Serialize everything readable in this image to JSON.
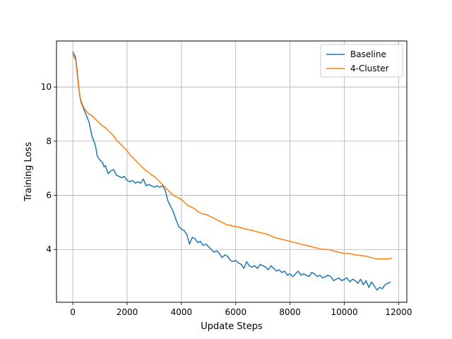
{
  "chart_data": {
    "type": "line",
    "xlabel": "Update Steps",
    "ylabel": "Training Loss",
    "xlim": [
      -600,
      12300
    ],
    "ylim": [
      2.05,
      11.7
    ],
    "xticks": [
      0,
      2000,
      4000,
      6000,
      8000,
      10000,
      12000
    ],
    "yticks": [
      4,
      6,
      8,
      10
    ],
    "grid": true,
    "legend_position": "top-right",
    "series": [
      {
        "name": "Baseline",
        "color": "#1f77b4",
        "points": [
          [
            0,
            11.3
          ],
          [
            100,
            11.1
          ],
          [
            150,
            10.7
          ],
          [
            200,
            10.2
          ],
          [
            250,
            9.7
          ],
          [
            300,
            9.45
          ],
          [
            400,
            9.2
          ],
          [
            500,
            8.95
          ],
          [
            600,
            8.7
          ],
          [
            650,
            8.45
          ],
          [
            700,
            8.2
          ],
          [
            800,
            7.95
          ],
          [
            850,
            7.75
          ],
          [
            900,
            7.45
          ],
          [
            1000,
            7.3
          ],
          [
            1100,
            7.2
          ],
          [
            1150,
            7.05
          ],
          [
            1200,
            7.1
          ],
          [
            1300,
            6.8
          ],
          [
            1400,
            6.9
          ],
          [
            1500,
            6.95
          ],
          [
            1600,
            6.75
          ],
          [
            1700,
            6.7
          ],
          [
            1800,
            6.65
          ],
          [
            1900,
            6.7
          ],
          [
            2000,
            6.55
          ],
          [
            2100,
            6.5
          ],
          [
            2200,
            6.55
          ],
          [
            2300,
            6.45
          ],
          [
            2400,
            6.5
          ],
          [
            2500,
            6.45
          ],
          [
            2600,
            6.6
          ],
          [
            2700,
            6.35
          ],
          [
            2800,
            6.4
          ],
          [
            2900,
            6.35
          ],
          [
            3000,
            6.3
          ],
          [
            3100,
            6.35
          ],
          [
            3200,
            6.3
          ],
          [
            3300,
            6.35
          ],
          [
            3400,
            6.2
          ],
          [
            3500,
            5.8
          ],
          [
            3600,
            5.6
          ],
          [
            3700,
            5.4
          ],
          [
            3800,
            5.1
          ],
          [
            3900,
            4.85
          ],
          [
            4000,
            4.75
          ],
          [
            4100,
            4.7
          ],
          [
            4200,
            4.55
          ],
          [
            4300,
            4.2
          ],
          [
            4400,
            4.45
          ],
          [
            4500,
            4.4
          ],
          [
            4600,
            4.25
          ],
          [
            4700,
            4.3
          ],
          [
            4800,
            4.15
          ],
          [
            4900,
            4.2
          ],
          [
            5000,
            4.1
          ],
          [
            5100,
            4.0
          ],
          [
            5200,
            3.9
          ],
          [
            5300,
            3.95
          ],
          [
            5400,
            3.85
          ],
          [
            5500,
            3.7
          ],
          [
            5600,
            3.8
          ],
          [
            5700,
            3.75
          ],
          [
            5800,
            3.6
          ],
          [
            5900,
            3.55
          ],
          [
            6000,
            3.6
          ],
          [
            6100,
            3.5
          ],
          [
            6200,
            3.45
          ],
          [
            6300,
            3.3
          ],
          [
            6400,
            3.55
          ],
          [
            6500,
            3.4
          ],
          [
            6600,
            3.35
          ],
          [
            6700,
            3.4
          ],
          [
            6800,
            3.3
          ],
          [
            6900,
            3.45
          ],
          [
            7000,
            3.4
          ],
          [
            7100,
            3.35
          ],
          [
            7200,
            3.25
          ],
          [
            7300,
            3.4
          ],
          [
            7400,
            3.3
          ],
          [
            7500,
            3.2
          ],
          [
            7600,
            3.25
          ],
          [
            7700,
            3.15
          ],
          [
            7800,
            3.2
          ],
          [
            7900,
            3.05
          ],
          [
            8000,
            3.1
          ],
          [
            8100,
            3.0
          ],
          [
            8200,
            3.1
          ],
          [
            8300,
            3.2
          ],
          [
            8400,
            3.05
          ],
          [
            8500,
            3.1
          ],
          [
            8600,
            3.05
          ],
          [
            8700,
            3.0
          ],
          [
            8800,
            3.15
          ],
          [
            8900,
            3.1
          ],
          [
            9000,
            3.0
          ],
          [
            9100,
            3.05
          ],
          [
            9200,
            2.95
          ],
          [
            9300,
            3.0
          ],
          [
            9400,
            3.05
          ],
          [
            9500,
            3.0
          ],
          [
            9600,
            2.85
          ],
          [
            9700,
            2.9
          ],
          [
            9800,
            2.95
          ],
          [
            9900,
            2.85
          ],
          [
            10000,
            2.9
          ],
          [
            10100,
            2.95
          ],
          [
            10200,
            2.8
          ],
          [
            10300,
            2.9
          ],
          [
            10400,
            2.85
          ],
          [
            10500,
            2.75
          ],
          [
            10600,
            2.9
          ],
          [
            10700,
            2.7
          ],
          [
            10800,
            2.85
          ],
          [
            10900,
            2.6
          ],
          [
            11000,
            2.8
          ],
          [
            11100,
            2.65
          ],
          [
            11200,
            2.5
          ],
          [
            11300,
            2.6
          ],
          [
            11400,
            2.55
          ],
          [
            11500,
            2.7
          ],
          [
            11600,
            2.75
          ],
          [
            11700,
            2.8
          ]
        ]
      },
      {
        "name": "4-Cluster",
        "color": "#ff7f0e",
        "points": [
          [
            0,
            11.2
          ],
          [
            100,
            11.0
          ],
          [
            150,
            10.6
          ],
          [
            200,
            10.1
          ],
          [
            250,
            9.75
          ],
          [
            300,
            9.5
          ],
          [
            400,
            9.25
          ],
          [
            500,
            9.1
          ],
          [
            600,
            9.0
          ],
          [
            700,
            8.95
          ],
          [
            800,
            8.85
          ],
          [
            900,
            8.75
          ],
          [
            1000,
            8.65
          ],
          [
            1100,
            8.55
          ],
          [
            1200,
            8.5
          ],
          [
            1300,
            8.4
          ],
          [
            1400,
            8.3
          ],
          [
            1500,
            8.2
          ],
          [
            1600,
            8.05
          ],
          [
            1700,
            7.95
          ],
          [
            1800,
            7.85
          ],
          [
            1900,
            7.75
          ],
          [
            2000,
            7.65
          ],
          [
            2100,
            7.5
          ],
          [
            2200,
            7.4
          ],
          [
            2300,
            7.3
          ],
          [
            2400,
            7.2
          ],
          [
            2500,
            7.1
          ],
          [
            2600,
            7.0
          ],
          [
            2700,
            6.9
          ],
          [
            2800,
            6.85
          ],
          [
            2900,
            6.75
          ],
          [
            3000,
            6.7
          ],
          [
            3100,
            6.6
          ],
          [
            3200,
            6.5
          ],
          [
            3300,
            6.4
          ],
          [
            3400,
            6.3
          ],
          [
            3500,
            6.2
          ],
          [
            3600,
            6.1
          ],
          [
            3700,
            6.0
          ],
          [
            3800,
            5.95
          ],
          [
            3900,
            5.9
          ],
          [
            4000,
            5.85
          ],
          [
            4100,
            5.75
          ],
          [
            4200,
            5.65
          ],
          [
            4300,
            5.6
          ],
          [
            4400,
            5.55
          ],
          [
            4500,
            5.5
          ],
          [
            4600,
            5.4
          ],
          [
            4700,
            5.35
          ],
          [
            4800,
            5.3
          ],
          [
            4900,
            5.3
          ],
          [
            5000,
            5.25
          ],
          [
            5100,
            5.2
          ],
          [
            5200,
            5.15
          ],
          [
            5300,
            5.1
          ],
          [
            5400,
            5.05
          ],
          [
            5500,
            5.0
          ],
          [
            5600,
            4.95
          ],
          [
            5700,
            4.9
          ],
          [
            5800,
            4.9
          ],
          [
            5900,
            4.85
          ],
          [
            6000,
            4.85
          ],
          [
            6200,
            4.8
          ],
          [
            6400,
            4.75
          ],
          [
            6600,
            4.7
          ],
          [
            6800,
            4.65
          ],
          [
            7000,
            4.6
          ],
          [
            7200,
            4.55
          ],
          [
            7400,
            4.45
          ],
          [
            7600,
            4.4
          ],
          [
            7800,
            4.35
          ],
          [
            8000,
            4.3
          ],
          [
            8200,
            4.25
          ],
          [
            8400,
            4.2
          ],
          [
            8600,
            4.15
          ],
          [
            8800,
            4.1
          ],
          [
            9000,
            4.05
          ],
          [
            9200,
            4.0
          ],
          [
            9400,
            4.0
          ],
          [
            9600,
            3.95
          ],
          [
            9800,
            3.9
          ],
          [
            10000,
            3.85
          ],
          [
            10200,
            3.85
          ],
          [
            10400,
            3.8
          ],
          [
            10600,
            3.78
          ],
          [
            10800,
            3.75
          ],
          [
            11000,
            3.7
          ],
          [
            11200,
            3.65
          ],
          [
            11400,
            3.65
          ],
          [
            11600,
            3.65
          ],
          [
            11750,
            3.68
          ]
        ]
      }
    ]
  }
}
